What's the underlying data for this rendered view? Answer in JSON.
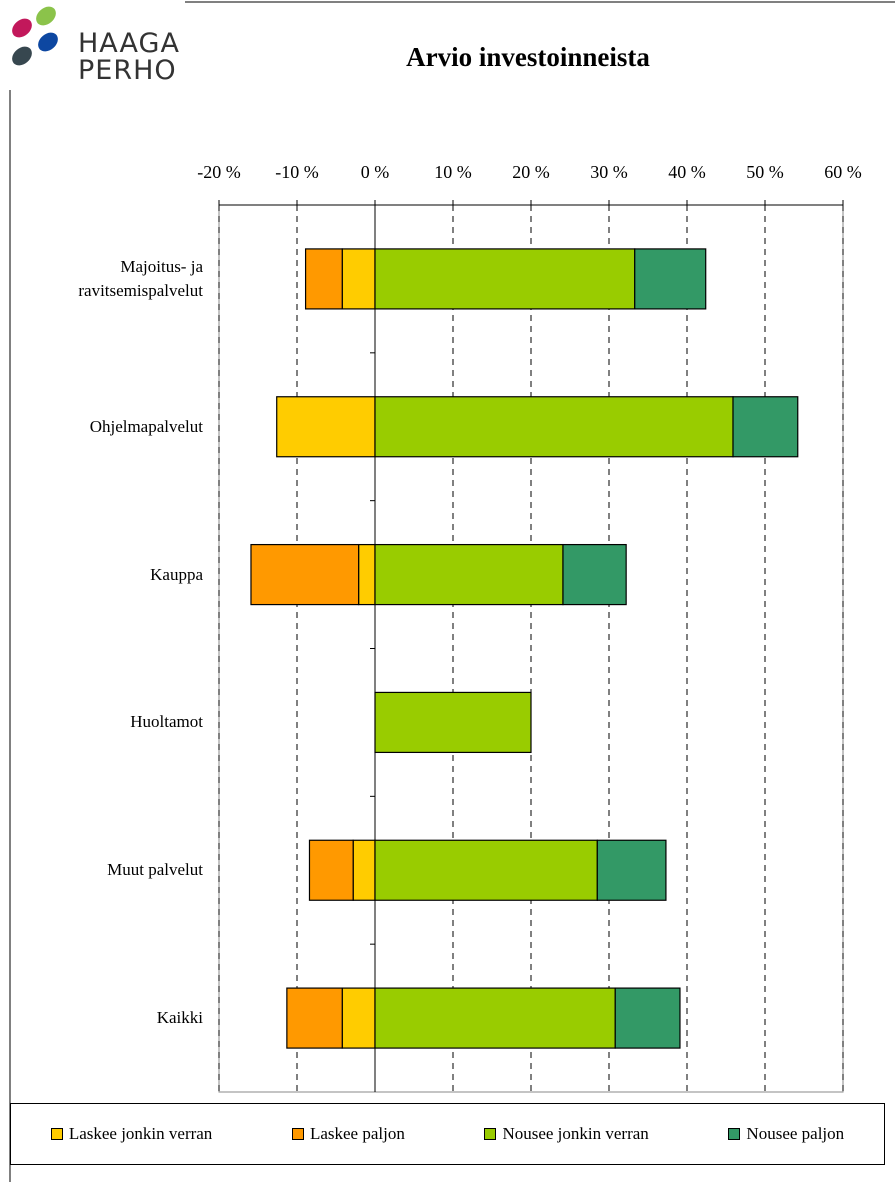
{
  "logo": [
    "HAAGA",
    "PERHO"
  ],
  "chart_data": {
    "type": "stacked-bar-horizontal",
    "title": "Arvio investoinneista",
    "categories": [
      "Majoitus- ja ravitsemispalvelut",
      "Ohjelmapalvelut",
      "Kauppa",
      "Huoltamot",
      "Muut palvelut",
      "Kaikki"
    ],
    "series": [
      {
        "name": "Laskee jonkin verran",
        "color": "#ffcc00",
        "values": [
          -4.2,
          -12.6,
          -2.1,
          0,
          -2.8,
          -4.2
        ]
      },
      {
        "name": "Laskee paljon",
        "color": "#ff9900",
        "values": [
          -4.7,
          0,
          -13.8,
          0,
          -5.6,
          -7.1
        ]
      },
      {
        "name": "Nousee jonkin verran",
        "color": "#99cc00",
        "values": [
          33.3,
          45.9,
          24.1,
          20.0,
          28.5,
          30.8
        ]
      },
      {
        "name": "Nousee paljon",
        "color": "#339966",
        "values": [
          9.1,
          8.3,
          8.1,
          0,
          8.8,
          8.3
        ]
      }
    ],
    "xlim": [
      -20,
      60
    ],
    "xticks": [
      {
        "value": -20,
        "label": "-20 %"
      },
      {
        "value": -10,
        "label": "-10 %"
      },
      {
        "value": 0,
        "label": "0 %"
      },
      {
        "value": 10,
        "label": "10 %"
      },
      {
        "value": 20,
        "label": "20 %"
      },
      {
        "value": 30,
        "label": "30 %"
      },
      {
        "value": 40,
        "label": "40 %"
      },
      {
        "value": 50,
        "label": "50 %"
      },
      {
        "value": 60,
        "label": "60 %"
      }
    ],
    "grid": true,
    "legend": "bottom"
  }
}
